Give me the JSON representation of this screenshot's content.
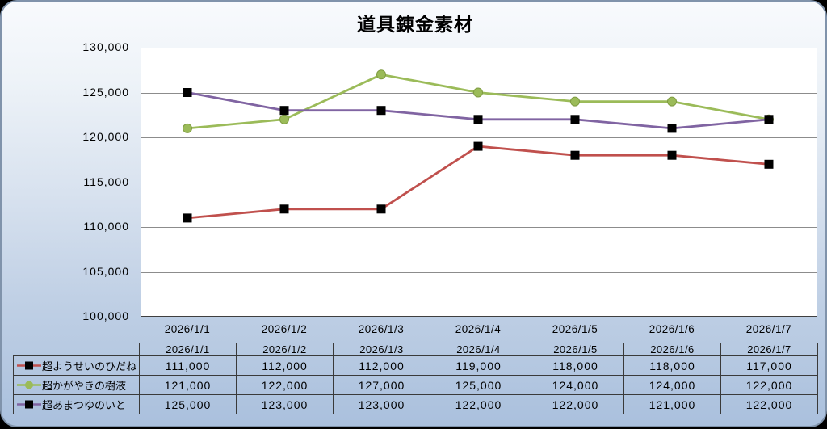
{
  "title": "道具錬金素材",
  "chart_data": {
    "type": "line",
    "title": "道具錬金素材",
    "x": [
      "2026/1/1",
      "2026/1/2",
      "2026/1/3",
      "2026/1/4",
      "2026/1/5",
      "2026/1/6",
      "2026/1/7"
    ],
    "ylim": [
      100000,
      130000
    ],
    "ytick_step": 5000,
    "grid": true,
    "legend_position": "table-left-column",
    "series": [
      {
        "name": "超ようせいのひだね",
        "color": "#C0504D",
        "marker": "square",
        "marker_color": "#000000",
        "values": [
          111000,
          112000,
          112000,
          119000,
          118000,
          118000,
          117000
        ]
      },
      {
        "name": "超かがやきの樹液",
        "color": "#9BBB59",
        "marker": "circle",
        "marker_color": "#9BBB59",
        "values": [
          121000,
          122000,
          127000,
          125000,
          124000,
          124000,
          122000
        ]
      },
      {
        "name": "超あまつゆのいと",
        "color": "#8064A2",
        "marker": "square",
        "marker_color": "#000000",
        "values": [
          125000,
          123000,
          123000,
          122000,
          122000,
          121000,
          122000
        ]
      }
    ]
  },
  "table": {
    "headers": [
      "2026/1/1",
      "2026/1/2",
      "2026/1/3",
      "2026/1/4",
      "2026/1/5",
      "2026/1/6",
      "2026/1/7"
    ],
    "row_labels": [
      "超ようせいのひだね",
      "超かがやきの樹液",
      "超あまつゆのいと"
    ],
    "rows": [
      [
        "111,000",
        "112,000",
        "112,000",
        "119,000",
        "118,000",
        "118,000",
        "117,000"
      ],
      [
        "121,000",
        "122,000",
        "127,000",
        "125,000",
        "124,000",
        "124,000",
        "122,000"
      ],
      [
        "125,000",
        "123,000",
        "123,000",
        "122,000",
        "122,000",
        "121,000",
        "122,000"
      ]
    ]
  },
  "colors": {
    "panel_border": "#8093ab",
    "plot_border": "#3f3f3f",
    "gridline": "#8c8c8c",
    "table_border": "#3a3a3a",
    "background_top": "#f8fafd",
    "background_bottom": "#aac0dd"
  }
}
